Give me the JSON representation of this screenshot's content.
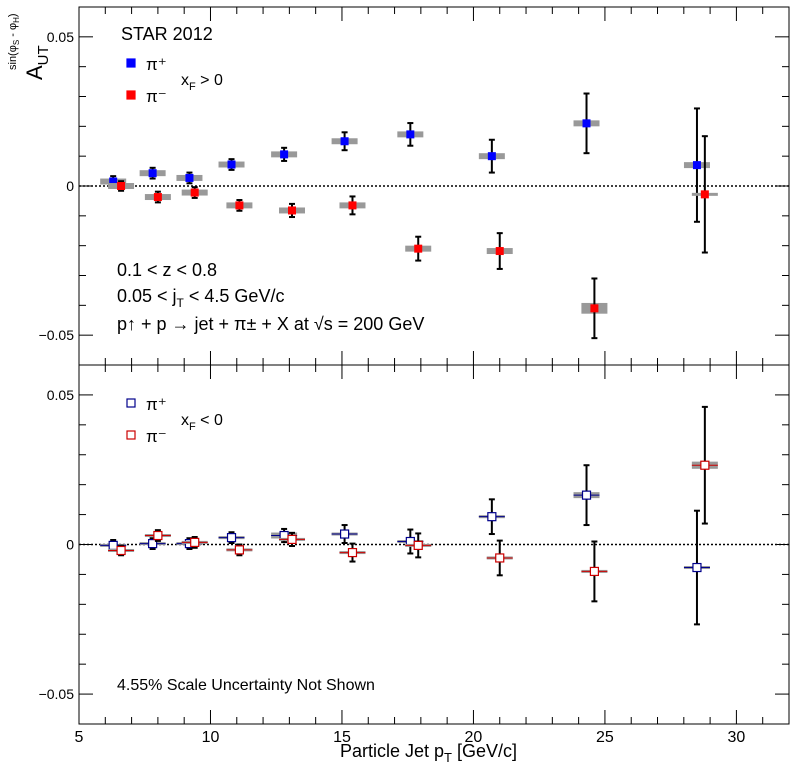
{
  "chart_data": {
    "type": "scatter",
    "xlabel": "Particle Jet p_T [GeV/c]",
    "ylabel": "A_UT^{sin(φ_S - φ_H)}",
    "xlim": [
      5,
      32
    ],
    "x_ticks": [
      "5",
      "10",
      "15",
      "20",
      "25",
      "30"
    ],
    "grid": false,
    "panels": [
      {
        "id": "top",
        "ylim": [
          -0.06,
          0.06
        ],
        "y_ticks": [
          "0.05",
          "0",
          "−0.05"
        ],
        "legend": {
          "title": "STAR 2012",
          "entries": [
            "π⁺",
            "π⁻"
          ],
          "condition": "x_F > 0",
          "placement": "top-left"
        },
        "annotations": [
          "0.1 < z < 0.8",
          "0.05 < j_T < 4.5 GeV/c",
          "p↑ + p → jet + π± + X at √s = 200 GeV"
        ],
        "series": [
          {
            "name": "π+",
            "color": "#0000ff",
            "marker": "filled-square",
            "points": [
              {
                "x": 6.3,
                "y": 0.0015,
                "err": 0.0018,
                "sys": 0.001
              },
              {
                "x": 7.8,
                "y": 0.0043,
                "err": 0.0018,
                "sys": 0.001
              },
              {
                "x": 9.2,
                "y": 0.0027,
                "err": 0.0018,
                "sys": 0.001
              },
              {
                "x": 10.8,
                "y": 0.0072,
                "err": 0.0018,
                "sys": 0.001
              },
              {
                "x": 12.8,
                "y": 0.0106,
                "err": 0.0022,
                "sys": 0.001
              },
              {
                "x": 15.1,
                "y": 0.015,
                "err": 0.003,
                "sys": 0.001
              },
              {
                "x": 17.6,
                "y": 0.0173,
                "err": 0.0038,
                "sys": 0.001
              },
              {
                "x": 20.7,
                "y": 0.01,
                "err": 0.0055,
                "sys": 0.001
              },
              {
                "x": 24.3,
                "y": 0.021,
                "err": 0.01,
                "sys": 0.001
              },
              {
                "x": 28.5,
                "y": 0.007,
                "err": 0.019,
                "sys": 0.001
              }
            ]
          },
          {
            "name": "π-",
            "color": "#ff0000",
            "marker": "filled-square",
            "points": [
              {
                "x": 6.6,
                "y": 0.0,
                "err": 0.0016,
                "sys": 0.001
              },
              {
                "x": 8.0,
                "y": -0.0037,
                "err": 0.0018,
                "sys": 0.001
              },
              {
                "x": 9.4,
                "y": -0.0022,
                "err": 0.0018,
                "sys": 0.001
              },
              {
                "x": 11.1,
                "y": -0.0065,
                "err": 0.0018,
                "sys": 0.001
              },
              {
                "x": 13.1,
                "y": -0.0082,
                "err": 0.0022,
                "sys": 0.001
              },
              {
                "x": 15.4,
                "y": -0.0065,
                "err": 0.003,
                "sys": 0.001
              },
              {
                "x": 17.9,
                "y": -0.021,
                "err": 0.004,
                "sys": 0.001
              },
              {
                "x": 21.0,
                "y": -0.0218,
                "err": 0.006,
                "sys": 0.001
              },
              {
                "x": 24.6,
                "y": -0.041,
                "err": 0.01,
                "sys": 0.0018
              },
              {
                "x": 28.8,
                "y": -0.0028,
                "err": 0.0195,
                "sys": 0.0005
              }
            ]
          }
        ]
      },
      {
        "id": "bottom",
        "ylim": [
          -0.06,
          0.06
        ],
        "y_ticks": [
          "0.05",
          "0",
          "−0.05"
        ],
        "legend": {
          "entries": [
            "π⁺",
            "π⁻"
          ],
          "condition": "x_F < 0",
          "placement": "top-left"
        },
        "annotations": [
          "4.55% Scale Uncertainty Not Shown"
        ],
        "series": [
          {
            "name": "π+",
            "color": "#00008b",
            "marker": "open-square",
            "points": [
              {
                "x": 6.3,
                "y": -0.0003,
                "err": 0.0018,
                "sys": 0.0005
              },
              {
                "x": 7.8,
                "y": 0.0003,
                "err": 0.0018,
                "sys": 0.0005
              },
              {
                "x": 9.2,
                "y": 0.0003,
                "err": 0.0018,
                "sys": 0.0005
              },
              {
                "x": 10.8,
                "y": 0.0023,
                "err": 0.0018,
                "sys": 0.0005
              },
              {
                "x": 12.8,
                "y": 0.003,
                "err": 0.0022,
                "sys": 0.001
              },
              {
                "x": 15.1,
                "y": 0.0035,
                "err": 0.003,
                "sys": 0.0005
              },
              {
                "x": 17.6,
                "y": 0.001,
                "err": 0.004,
                "sys": 0.0005
              },
              {
                "x": 20.7,
                "y": 0.0093,
                "err": 0.0058,
                "sys": 0.0005
              },
              {
                "x": 24.3,
                "y": 0.0165,
                "err": 0.01,
                "sys": 0.001
              },
              {
                "x": 28.5,
                "y": -0.0077,
                "err": 0.019,
                "sys": 0.0005
              }
            ]
          },
          {
            "name": "π-",
            "color": "#cc0000",
            "marker": "open-square",
            "points": [
              {
                "x": 6.6,
                "y": -0.002,
                "err": 0.0016,
                "sys": 0.0005
              },
              {
                "x": 8.0,
                "y": 0.003,
                "err": 0.0018,
                "sys": 0.0005
              },
              {
                "x": 9.4,
                "y": 0.0007,
                "err": 0.0018,
                "sys": 0.0005
              },
              {
                "x": 11.1,
                "y": -0.0018,
                "err": 0.0018,
                "sys": 0.0005
              },
              {
                "x": 13.1,
                "y": 0.0017,
                "err": 0.0022,
                "sys": 0.0005
              },
              {
                "x": 15.4,
                "y": -0.0027,
                "err": 0.003,
                "sys": 0.0005
              },
              {
                "x": 17.9,
                "y": -0.0003,
                "err": 0.004,
                "sys": 0.0005
              },
              {
                "x": 21.0,
                "y": -0.0045,
                "err": 0.0058,
                "sys": 0.0005
              },
              {
                "x": 24.6,
                "y": -0.009,
                "err": 0.01,
                "sys": 0.0005
              },
              {
                "x": 28.8,
                "y": 0.0265,
                "err": 0.0195,
                "sys": 0.0012
              }
            ]
          }
        ]
      }
    ]
  }
}
